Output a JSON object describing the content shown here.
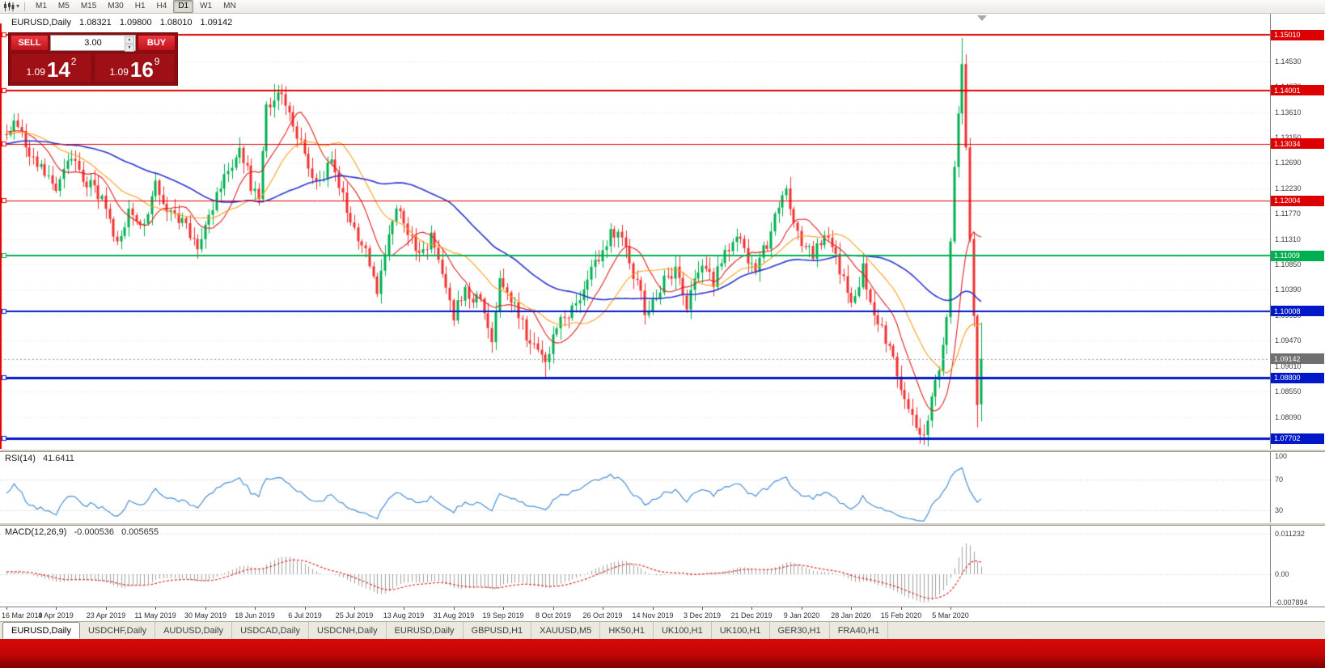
{
  "icons": {
    "dropdown": "▾",
    "volume_up": "▲",
    "volume_down": "▼"
  },
  "toolbar": {
    "timeframes": [
      {
        "label": "M1",
        "active": false
      },
      {
        "label": "M5",
        "active": false
      },
      {
        "label": "M15",
        "active": false
      },
      {
        "label": "M30",
        "active": false
      },
      {
        "label": "H1",
        "active": false
      },
      {
        "label": "H4",
        "active": false
      },
      {
        "label": "D1",
        "active": true
      },
      {
        "label": "W1",
        "active": false
      },
      {
        "label": "MN",
        "active": false
      }
    ]
  },
  "chart": {
    "symbol_period": "EURUSD,Daily",
    "ohlc": {
      "open": "1.08321",
      "high": "1.09800",
      "low": "1.08010",
      "close": "1.09142"
    }
  },
  "trade_widget": {
    "sell_label": "SELL",
    "buy_label": "BUY",
    "volume": "3.00",
    "sell_price": {
      "prefix": "1.09",
      "main": "14",
      "sup": "2"
    },
    "buy_price": {
      "prefix": "1.09",
      "main": "16",
      "sup": "9"
    }
  },
  "rsi": {
    "name": "RSI(14)",
    "value": "41.6411",
    "axis_labels": [
      "100",
      "70",
      "30"
    ]
  },
  "macd": {
    "name": "MACD(12,26,9)",
    "value1": "-0.000536",
    "value2": "0.005655",
    "axis_labels": [
      "0.011232",
      "0.00",
      "-0.007894"
    ]
  },
  "dates": [
    "16 Mar 2019",
    "4 Apr 2019",
    "23 Apr 2019",
    "11 May 2019",
    "30 May 2019",
    "18 Jun 2019",
    "6 Jul 2019",
    "25 Jul 2019",
    "13 Aug 2019",
    "31 Aug 2019",
    "19 Sep 2019",
    "8 Oct 2019",
    "26 Oct 2019",
    "14 Nov 2019",
    "3 Dec 2019",
    "21 Dec 2019",
    "9 Jan 2020",
    "28 Jan 2020",
    "15 Feb 2020",
    "5 Mar 2020"
  ],
  "tabs": [
    {
      "label": "EURUSD,Daily",
      "active": true
    },
    {
      "label": "USDCHF,Daily",
      "active": false
    },
    {
      "label": "AUDUSD,Daily",
      "active": false
    },
    {
      "label": "USDCAD,Daily",
      "active": false
    },
    {
      "label": "USDCNH,Daily",
      "active": false
    },
    {
      "label": "EURUSD,Daily",
      "active": false
    },
    {
      "label": "GBPUSD,H1",
      "active": false
    },
    {
      "label": "XAUUSD,M5",
      "active": false
    },
    {
      "label": "HK50,H1",
      "active": false
    },
    {
      "label": "UK100,H1",
      "active": false
    },
    {
      "label": "UK100,H1",
      "active": false
    },
    {
      "label": "GER30,H1",
      "active": false
    },
    {
      "label": "FRA40,H1",
      "active": false
    }
  ],
  "chart_data": {
    "type": "candlestick",
    "symbol": "EURUSD",
    "timeframe": "Daily",
    "last_bar": {
      "open": 1.08321,
      "high": 1.098,
      "low": 1.0801,
      "close": 1.09142
    },
    "current_price": {
      "value": 1.09142,
      "label": "1.09142",
      "badge_color": "#6f6f6f"
    },
    "price_axis_labels": [
      "1.14530",
      "1.14070",
      "1.13610",
      "1.13150",
      "1.12690",
      "1.12230",
      "1.11770",
      "1.11310",
      "1.10850",
      "1.10390",
      "1.09930",
      "1.09470",
      "1.09010",
      "1.08550",
      "1.08090"
    ],
    "horizontal_lines": [
      {
        "label": "1.15010",
        "value": 1.1501,
        "color": "#dd0000",
        "width": 2
      },
      {
        "label": "1.14001",
        "value": 1.14001,
        "color": "#dd0000",
        "width": 2
      },
      {
        "label": "1.13034",
        "value": 1.13034,
        "color": "#dd0000",
        "width": 1
      },
      {
        "label": "1.12004",
        "value": 1.12004,
        "color": "#dd0000",
        "width": 1
      },
      {
        "label": "1.11009",
        "value": 1.11009,
        "color": "#00b050",
        "width": 2
      },
      {
        "label": "1.10008",
        "value": 1.10008,
        "color": "#0018c8",
        "width": 2
      },
      {
        "label": "1.08800",
        "value": 1.088,
        "color": "#0018c8",
        "width": 3
      },
      {
        "label": "1.07702",
        "value": 1.07702,
        "color": "#0018c8",
        "width": 3
      }
    ],
    "moving_averages": [
      {
        "period": 10,
        "color": "#e02020"
      },
      {
        "period": 21,
        "color": "#ff9c1a"
      },
      {
        "period": 50,
        "color": "#2a35cf"
      }
    ],
    "bull_color": "#00b050",
    "bear_color": "#f23030",
    "candle_count": 256,
    "close_anchors": [
      [
        0,
        1.131
      ],
      [
        2,
        1.135
      ],
      [
        5,
        1.13
      ],
      [
        9,
        1.126
      ],
      [
        13,
        1.1225
      ],
      [
        17,
        1.1285
      ],
      [
        21,
        1.1235
      ],
      [
        26,
        1.119
      ],
      [
        29,
        1.1125
      ],
      [
        32,
        1.1175
      ],
      [
        36,
        1.115
      ],
      [
        39,
        1.1225
      ],
      [
        43,
        1.118
      ],
      [
        47,
        1.1155
      ],
      [
        50,
        1.1125
      ],
      [
        53,
        1.1165
      ],
      [
        57,
        1.125
      ],
      [
        61,
        1.1295
      ],
      [
        64,
        1.123
      ],
      [
        66,
        1.1215
      ],
      [
        68,
        1.137
      ],
      [
        71,
        1.1395
      ],
      [
        74,
        1.137
      ],
      [
        78,
        1.128
      ],
      [
        81,
        1.1225
      ],
      [
        85,
        1.127
      ],
      [
        88,
        1.1215
      ],
      [
        91,
        1.114
      ],
      [
        94,
        1.112
      ],
      [
        97,
        1.104
      ],
      [
        99,
        1.111
      ],
      [
        102,
        1.1195
      ],
      [
        104,
        1.117
      ],
      [
        108,
        1.1095
      ],
      [
        111,
        1.114
      ],
      [
        114,
        1.1075
      ],
      [
        117,
        1.0995
      ],
      [
        120,
        1.1035
      ],
      [
        124,
        1.102
      ],
      [
        127,
        1.0935
      ],
      [
        129,
        1.1065
      ],
      [
        131,
        1.104
      ],
      [
        134,
        1.099
      ],
      [
        138,
        1.093
      ],
      [
        141,
        1.0905
      ],
      [
        143,
        1.0965
      ],
      [
        146,
        1.099
      ],
      [
        150,
        1.103
      ],
      [
        153,
        1.1075
      ],
      [
        156,
        1.1105
      ],
      [
        158,
        1.1155
      ],
      [
        161,
        1.1125
      ],
      [
        164,
        1.1065
      ],
      [
        167,
        1.1005
      ],
      [
        169,
        1.101
      ],
      [
        172,
        1.106
      ],
      [
        175,
        1.1075
      ],
      [
        178,
        1.1015
      ],
      [
        182,
        1.108
      ],
      [
        185,
        1.105
      ],
      [
        188,
        1.111
      ],
      [
        191,
        1.1135
      ],
      [
        194,
        1.109
      ],
      [
        196,
        1.1085
      ],
      [
        199,
        1.1125
      ],
      [
        202,
        1.1185
      ],
      [
        204,
        1.121
      ],
      [
        206,
        1.1165
      ],
      [
        208,
        1.112
      ],
      [
        211,
        1.1105
      ],
      [
        214,
        1.114
      ],
      [
        217,
        1.1095
      ],
      [
        220,
        1.1035
      ],
      [
        222,
        1.102
      ],
      [
        224,
        1.1075
      ],
      [
        227,
        1.1
      ],
      [
        230,
        1.0945
      ],
      [
        233,
        1.0895
      ],
      [
        235,
        1.0835
      ],
      [
        238,
        1.0795
      ],
      [
        240,
        1.078
      ],
      [
        242,
        1.085
      ],
      [
        244,
        1.089
      ],
      [
        246,
        1.099
      ],
      [
        247,
        1.113
      ],
      [
        248,
        1.126
      ],
      [
        249,
        1.136
      ],
      [
        250,
        1.1445
      ],
      [
        251,
        1.13
      ],
      [
        252,
        1.113
      ],
      [
        253,
        1.099
      ],
      [
        254,
        1.0832
      ],
      [
        255,
        1.09142
      ]
    ],
    "wick_overrides": [
      {
        "day": 70,
        "high": 1.1412
      },
      {
        "day": 127,
        "low": 1.0926
      },
      {
        "day": 141,
        "low": 1.0881
      },
      {
        "day": 250,
        "high": 1.1495
      },
      {
        "day": 254,
        "low": 1.079
      }
    ],
    "rsi": {
      "period": 14,
      "color": "#4a8fd3",
      "levels": [
        70,
        30
      ],
      "current": 41.6411
    },
    "macd": {
      "fast": 12,
      "slow": 26,
      "signal_period": 9,
      "hist_color": "#a0a0a0",
      "signal_color": "#e03030",
      "current_macd": -0.000536,
      "current_signal": 0.005655
    }
  }
}
